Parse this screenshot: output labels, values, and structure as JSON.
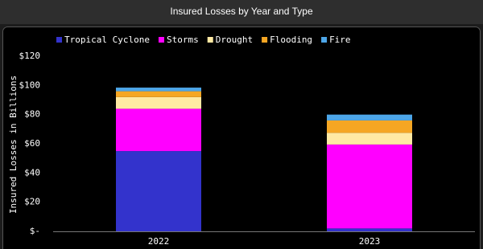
{
  "chart_data": {
    "type": "bar",
    "stacked": true,
    "title": "Insured Losses by Year and Type",
    "y_label": "Insured Losses in Billions",
    "categories": [
      "2022",
      "2023"
    ],
    "series": [
      {
        "name": "Tropical Cyclone",
        "color": "#3333cc",
        "values": [
          55,
          2
        ]
      },
      {
        "name": "Storms",
        "color": "#ff00ff",
        "values": [
          29,
          57.5
        ]
      },
      {
        "name": "Drought",
        "color": "#ffe9a3",
        "values": [
          8,
          8
        ]
      },
      {
        "name": "Flooding",
        "color": "#f5a623",
        "values": [
          4,
          8.5
        ]
      },
      {
        "name": "Fire",
        "color": "#4da6e8",
        "values": [
          2.5,
          4
        ]
      }
    ],
    "ylim": [
      0,
      120
    ],
    "yticks": [
      {
        "value": 0,
        "label": "$-"
      },
      {
        "value": 20,
        "label": "$20"
      },
      {
        "value": 40,
        "label": "$40"
      },
      {
        "value": 60,
        "label": "$60"
      },
      {
        "value": 80,
        "label": "$80"
      },
      {
        "value": 100,
        "label": "$100"
      },
      {
        "value": 120,
        "label": "$120"
      }
    ],
    "legend": "top-left"
  }
}
